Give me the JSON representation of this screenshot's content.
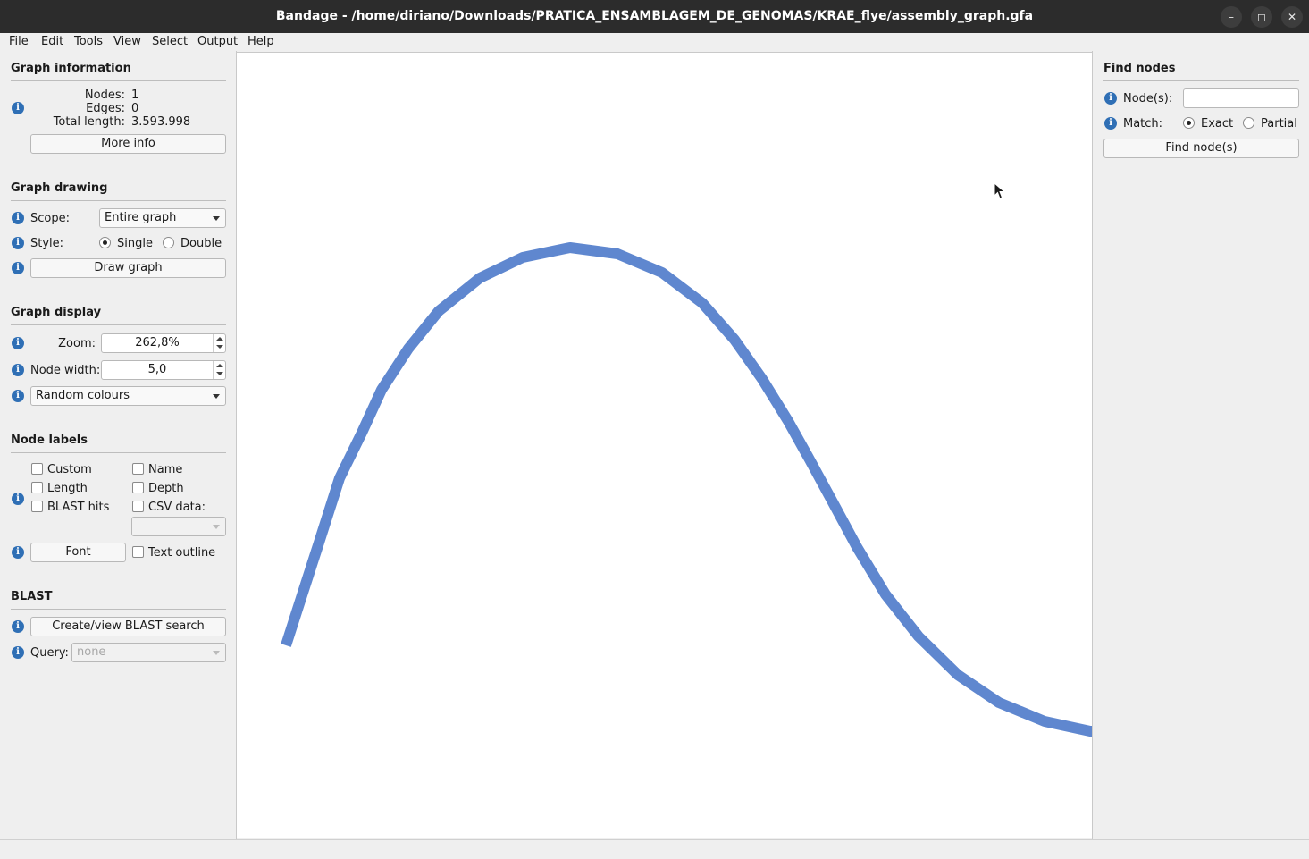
{
  "window": {
    "title": "Bandage - /home/diriano/Downloads/PRATICA_ENSAMBLAGEM_DE_GENOMAS/KRAE_flye/assembly_graph.gfa",
    "minimize_symbol": "–",
    "maximize_symbol": "◻",
    "close_symbol": "✕"
  },
  "menu": [
    "File",
    "Edit",
    "Tools",
    "View",
    "Select",
    "Output",
    "Help"
  ],
  "graph_information": {
    "title": "Graph information",
    "nodes_label": "Nodes:",
    "nodes_value": "1",
    "edges_label": "Edges:",
    "edges_value": "0",
    "total_length_label": "Total length:",
    "total_length_value": "3.593.998",
    "more_info_button": "More info"
  },
  "graph_drawing": {
    "title": "Graph drawing",
    "scope_label": "Scope:",
    "scope_value": "Entire graph",
    "style_label": "Style:",
    "style_single": "Single",
    "style_double": "Double",
    "style_selected": "Single",
    "draw_button": "Draw graph"
  },
  "graph_display": {
    "title": "Graph display",
    "zoom_label": "Zoom:",
    "zoom_value": "262,8%",
    "node_width_label": "Node width:",
    "node_width_value": "5,0",
    "colour_scheme": "Random colours"
  },
  "node_labels": {
    "title": "Node labels",
    "custom": "Custom",
    "name": "Name",
    "length": "Length",
    "depth": "Depth",
    "blast_hits": "BLAST hits",
    "csv_data": "CSV data:",
    "font_button": "Font",
    "text_outline": "Text outline"
  },
  "blast": {
    "title": "BLAST",
    "create_button": "Create/view BLAST search",
    "query_label": "Query:",
    "query_value": "none"
  },
  "find_nodes": {
    "title": "Find nodes",
    "nodes_label": "Node(s):",
    "nodes_value": "",
    "match_label": "Match:",
    "exact": "Exact",
    "partial": "Partial",
    "match_selected": "Exact",
    "find_button": "Find node(s)"
  },
  "canvas": {
    "node_color": "#5f87cf",
    "background": "#ffffff"
  },
  "icons": {
    "info": "info-icon",
    "dropdown": "chevron-down-icon",
    "cursor": "mouse-pointer-icon"
  }
}
